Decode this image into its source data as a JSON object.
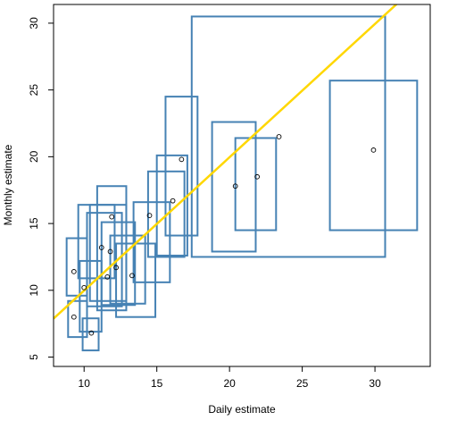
{
  "chart_data": {
    "type": "scatter",
    "title": "",
    "xlabel": "Daily estimate",
    "ylabel": "Monthly estimate",
    "xlim": [
      7.9,
      33.8
    ],
    "ylim": [
      4.3,
      31.4
    ],
    "x_ticks": [
      10,
      15,
      20,
      25,
      30
    ],
    "y_ticks": [
      5,
      10,
      15,
      20,
      25,
      30
    ],
    "grid": false,
    "legend": "none",
    "points": [
      {
        "x": 9.3,
        "y": 8.0
      },
      {
        "x": 9.3,
        "y": 11.4
      },
      {
        "x": 10.0,
        "y": 10.2
      },
      {
        "x": 10.5,
        "y": 6.8
      },
      {
        "x": 11.2,
        "y": 13.2
      },
      {
        "x": 11.6,
        "y": 11.0
      },
      {
        "x": 11.8,
        "y": 12.9
      },
      {
        "x": 11.9,
        "y": 15.5
      },
      {
        "x": 12.2,
        "y": 11.7
      },
      {
        "x": 13.3,
        "y": 11.1
      },
      {
        "x": 14.5,
        "y": 15.6
      },
      {
        "x": 16.1,
        "y": 16.7
      },
      {
        "x": 16.7,
        "y": 19.8
      },
      {
        "x": 20.4,
        "y": 17.8
      },
      {
        "x": 21.9,
        "y": 18.5
      },
      {
        "x": 23.4,
        "y": 21.5
      },
      {
        "x": 29.9,
        "y": 20.5
      }
    ],
    "intervals": [
      {
        "x": [
          8.9,
          10.2
        ],
        "y": [
          6.5,
          9.2
        ]
      },
      {
        "x": [
          8.8,
          10.2
        ],
        "y": [
          9.6,
          13.9
        ]
      },
      {
        "x": [
          9.7,
          11.2
        ],
        "y": [
          6.9,
          12.2
        ]
      },
      {
        "x": [
          9.9,
          11.0
        ],
        "y": [
          5.5,
          7.9
        ]
      },
      {
        "x": [
          9.6,
          12.1
        ],
        "y": [
          10.9,
          16.4
        ]
      },
      {
        "x": [
          10.2,
          12.6
        ],
        "y": [
          8.8,
          15.8
        ]
      },
      {
        "x": [
          10.4,
          12.9
        ],
        "y": [
          9.2,
          16.4
        ]
      },
      {
        "x": [
          10.9,
          12.9
        ],
        "y": [
          8.5,
          17.8
        ]
      },
      {
        "x": [
          11.2,
          13.5
        ],
        "y": [
          8.9,
          15.1
        ]
      },
      {
        "x": [
          11.8,
          14.2
        ],
        "y": [
          9.0,
          14.1
        ]
      },
      {
        "x": [
          12.2,
          14.9
        ],
        "y": [
          8.0,
          13.5
        ]
      },
      {
        "x": [
          13.4,
          15.9
        ],
        "y": [
          10.6,
          16.6
        ]
      },
      {
        "x": [
          14.4,
          16.9
        ],
        "y": [
          12.5,
          18.9
        ]
      },
      {
        "x": [
          15.0,
          17.1
        ],
        "y": [
          12.6,
          20.1
        ]
      },
      {
        "x": [
          15.6,
          17.8
        ],
        "y": [
          14.1,
          24.5
        ]
      },
      {
        "x": [
          17.4,
          30.7
        ],
        "y": [
          12.5,
          30.5
        ]
      },
      {
        "x": [
          18.8,
          21.8
        ],
        "y": [
          12.9,
          22.6
        ]
      },
      {
        "x": [
          20.4,
          23.2
        ],
        "y": [
          14.5,
          21.4
        ]
      },
      {
        "x": [
          26.9,
          32.9
        ],
        "y": [
          14.5,
          25.7
        ]
      }
    ],
    "fit_line": {
      "slope": 0.998,
      "intercept": 0.0
    },
    "colors": {
      "boxes": "#4682b4",
      "points": "#000000",
      "fit_line": "#ffd700",
      "axes": "#000000"
    }
  }
}
